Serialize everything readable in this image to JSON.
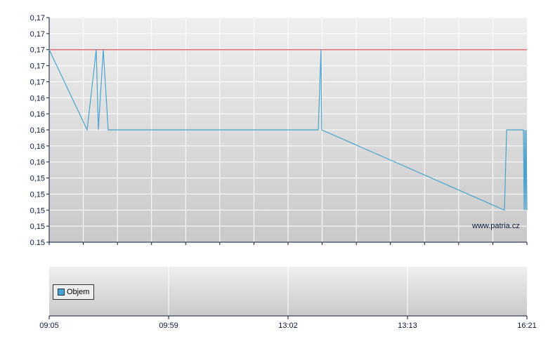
{
  "chart_data": {
    "type": "line",
    "title": "",
    "xlabel": "",
    "ylabel": "",
    "ylim": [
      0.147,
      0.1722
    ],
    "y_tick_labels": [
      "0.15",
      "0,15",
      "0,15",
      "0,15",
      "0,15",
      "0,16",
      "0,16",
      "0,16",
      "0,16",
      "0,16",
      "0,17",
      "0,17",
      "0,17",
      "0,17",
      "0,17"
    ],
    "x_tick_labels": [
      "09:05",
      "09:59",
      "13:02",
      "13:13",
      "16:21"
    ],
    "grid": true,
    "reference_line": {
      "value": 0.1686,
      "color": "#e07070"
    },
    "series": [
      {
        "color": "#4aa3cf",
        "points": [
          [
            "09:05:00",
            0.1686
          ],
          [
            "09:22:09",
            0.1596
          ],
          [
            "09:26:17",
            0.1686
          ],
          [
            "09:27:14",
            0.1596
          ],
          [
            "09:29:28",
            0.1686
          ],
          [
            "09:31:41",
            0.1596
          ],
          [
            "13:04:47",
            0.1596
          ],
          [
            "13:05:02",
            0.1686
          ],
          [
            "13:05:06",
            0.1596
          ],
          [
            "15:45:36",
            0.1506
          ],
          [
            "15:49:00",
            0.1596
          ],
          [
            "16:15:30",
            0.1596
          ],
          [
            "16:16:36",
            0.1506
          ],
          [
            "16:17:42",
            0.1596
          ],
          [
            "16:18:48",
            0.1506
          ],
          [
            "16:19:54",
            0.1596
          ],
          [
            "16:21:00",
            0.1506
          ]
        ]
      }
    ],
    "volume_panel": {
      "legend": "Objem",
      "legend_color": "#4aa3cf"
    },
    "watermark": "www.patria.cz",
    "legend_placement": "bottom-left"
  }
}
